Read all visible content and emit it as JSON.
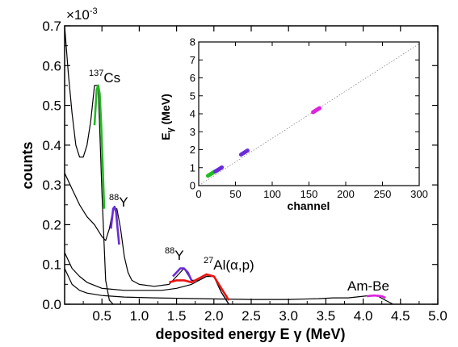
{
  "chart_data": [
    {
      "type": "line",
      "xlabel_main": "deposited energy E",
      "xlabel_symbol": "γ",
      "xlabel_unit": "(MeV)",
      "ylabel": "counts",
      "yscale_prefix": "×10",
      "yscale_exponent": "-3",
      "xlim": [
        0,
        5.0
      ],
      "ylim": [
        0,
        0.7
      ],
      "xticks": [
        "0.5",
        "1.0",
        "1.5",
        "2.0",
        "2.5",
        "3.0",
        "3.5",
        "4.0",
        "4.5",
        "5.0"
      ],
      "yticks": [
        "0.0",
        "0.1",
        "0.2",
        "0.3",
        "0.4",
        "0.5",
        "0.6",
        "0.7"
      ],
      "annotations": [
        {
          "mass": "137",
          "text": "Cs"
        },
        {
          "mass": "88",
          "text": "Y"
        },
        {
          "mass": "88",
          "text": "Y"
        },
        {
          "mass": "27",
          "text": "Al(α,p)"
        },
        {
          "mass": "",
          "text": "Am-Be"
        }
      ],
      "series": [
        {
          "color": "#000000",
          "x": [
            0.0,
            0.05,
            0.1,
            0.15,
            0.2,
            0.25,
            0.3,
            0.35,
            0.4,
            0.45,
            0.5,
            0.55,
            0.6,
            0.65
          ],
          "y": [
            0.7,
            0.58,
            0.48,
            0.4,
            0.37,
            0.37,
            0.4,
            0.46,
            0.55,
            0.55,
            0.28,
            0.06,
            0.01,
            0.0
          ]
        },
        {
          "color": "#000000",
          "x": [
            0.0,
            0.1,
            0.2,
            0.3,
            0.4,
            0.5,
            0.55,
            0.6,
            0.65,
            0.7,
            0.75,
            0.8,
            0.85,
            0.9,
            1.0,
            1.2,
            1.4,
            1.5,
            1.6,
            1.7,
            1.8,
            1.9,
            2.0,
            2.1,
            2.2
          ],
          "y": [
            0.33,
            0.29,
            0.25,
            0.22,
            0.2,
            0.17,
            0.16,
            0.19,
            0.24,
            0.24,
            0.19,
            0.12,
            0.08,
            0.06,
            0.05,
            0.045,
            0.05,
            0.07,
            0.09,
            0.06,
            0.06,
            0.07,
            0.07,
            0.03,
            0.0
          ]
        },
        {
          "color": "#000000",
          "x": [
            0.0,
            0.1,
            0.2,
            0.3,
            0.5,
            0.8,
            1.0,
            1.3,
            1.5,
            1.7,
            1.9,
            2.0,
            2.1,
            2.2
          ],
          "y": [
            0.13,
            0.09,
            0.07,
            0.055,
            0.04,
            0.035,
            0.035,
            0.035,
            0.04,
            0.05,
            0.07,
            0.07,
            0.03,
            0.0
          ]
        },
        {
          "color": "#000000",
          "x": [
            0.0,
            0.1,
            0.2,
            0.3,
            0.5,
            0.8,
            1.2,
            1.8,
            2.5,
            3.0,
            3.4,
            3.6,
            3.8,
            4.0,
            4.1,
            4.2,
            4.3,
            4.4
          ],
          "y": [
            0.09,
            0.05,
            0.035,
            0.028,
            0.022,
            0.018,
            0.016,
            0.014,
            0.012,
            0.012,
            0.014,
            0.016,
            0.016,
            0.02,
            0.022,
            0.02,
            0.01,
            0.0
          ]
        },
        {
          "color": "#22bb22",
          "x": [
            0.4,
            0.43,
            0.45,
            0.47,
            0.49,
            0.51,
            0.53
          ],
          "y": [
            0.45,
            0.54,
            0.55,
            0.53,
            0.45,
            0.35,
            0.24
          ]
        },
        {
          "color": "#6a2bd9",
          "x": [
            0.62,
            0.65,
            0.67,
            0.69,
            0.71,
            0.73
          ],
          "y": [
            0.19,
            0.24,
            0.245,
            0.23,
            0.19,
            0.15
          ]
        },
        {
          "color": "#6a2bd9",
          "x": [
            1.45,
            1.5,
            1.55,
            1.6,
            1.65,
            1.7
          ],
          "y": [
            0.07,
            0.08,
            0.09,
            0.09,
            0.08,
            0.06
          ]
        },
        {
          "color": "#ee1111",
          "x": [
            1.4,
            1.5,
            1.6,
            1.7,
            1.8,
            1.9,
            2.0,
            2.1,
            2.2
          ],
          "y": [
            0.055,
            0.06,
            0.06,
            0.055,
            0.065,
            0.075,
            0.07,
            0.04,
            0.01
          ]
        },
        {
          "color": "#dd22dd",
          "x": [
            4.05,
            4.1,
            4.15,
            4.2,
            4.25,
            4.3
          ],
          "y": [
            0.02,
            0.021,
            0.022,
            0.021,
            0.02,
            0.016
          ]
        }
      ]
    },
    {
      "type": "scatter",
      "xlabel": "channel",
      "ylabel_main": "E",
      "ylabel_symbol": "γ",
      "ylabel_unit": "(MeV)",
      "xlim": [
        0,
        300
      ],
      "ylim": [
        0,
        8
      ],
      "xticks": [
        "0",
        "50",
        "100",
        "150",
        "200",
        "250",
        "300"
      ],
      "yticks": [
        "0",
        "1",
        "2",
        "3",
        "4",
        "5",
        "6",
        "7",
        "8"
      ],
      "fit_line": {
        "x": [
          0,
          300
        ],
        "y": [
          0.0,
          7.9
        ]
      },
      "points": [
        {
          "x": 17,
          "y": 0.66,
          "color": "#22bb22"
        },
        {
          "x": 27,
          "y": 0.9,
          "color": "#6a2bd9"
        },
        {
          "x": 62,
          "y": 1.84,
          "color": "#6a2bd9"
        },
        {
          "x": 160,
          "y": 4.2,
          "color": "#dd22dd"
        }
      ]
    }
  ]
}
